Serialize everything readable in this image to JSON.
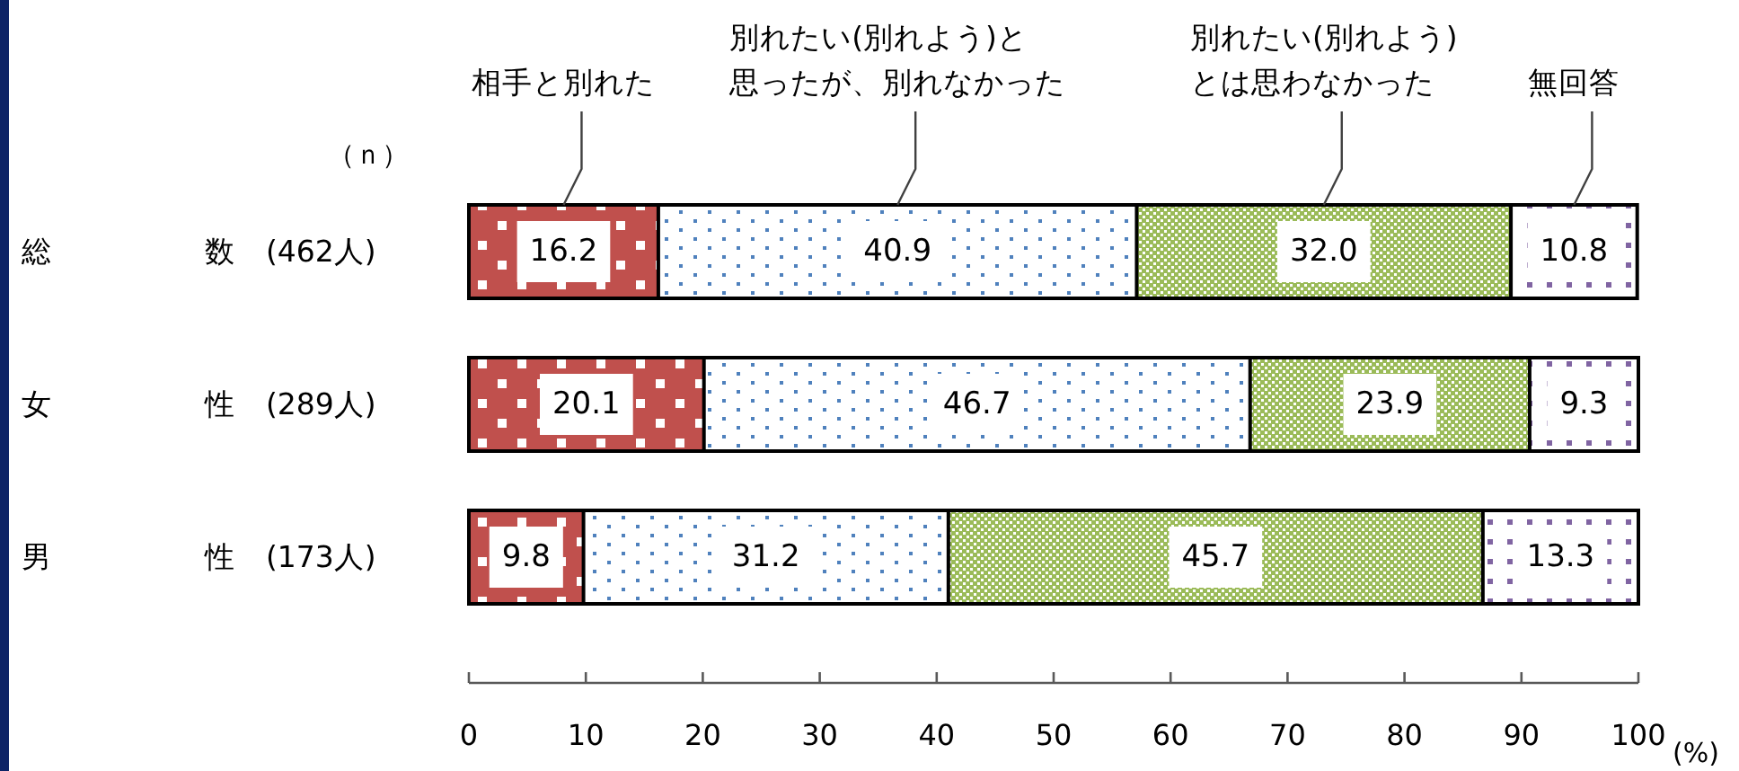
{
  "chart_data": {
    "type": "bar",
    "orientation": "horizontal",
    "stacked": true,
    "categories": [
      "総　　　　　数　(462人)",
      "女　　　　　性　(289人)",
      "男　　　　　性　(173人)"
    ],
    "series": [
      {
        "name": "相手と別れた",
        "color": "#c0504d",
        "values": [
          16.2,
          20.1,
          9.8
        ],
        "value_labels": [
          "16.2",
          "20.1",
          "9.8"
        ]
      },
      {
        "name": "別れたい(別れよう)と思ったが、別れなかった",
        "color": "#4f81bd",
        "values": [
          40.9,
          46.7,
          31.2
        ],
        "value_labels": [
          "40.9",
          "46.7",
          "31.2"
        ]
      },
      {
        "name": "別れたい(別れよう)とは思わなかった",
        "color": "#9bbb59",
        "values": [
          32.0,
          23.9,
          45.7
        ],
        "value_labels": [
          "32.0",
          "23.9",
          "45.7"
        ]
      },
      {
        "name": "無回答",
        "color": "#8064a2",
        "values": [
          10.8,
          9.3,
          13.3
        ],
        "value_labels": [
          "10.8",
          "9.3",
          "13.3"
        ]
      }
    ],
    "xlim": [
      0,
      100
    ],
    "xticks": [
      0,
      10,
      20,
      30,
      40,
      50,
      60,
      70,
      80,
      90,
      100
    ],
    "xlabel": "(%)",
    "legend": "top",
    "annotations": [
      "（ｎ）"
    ]
  }
}
